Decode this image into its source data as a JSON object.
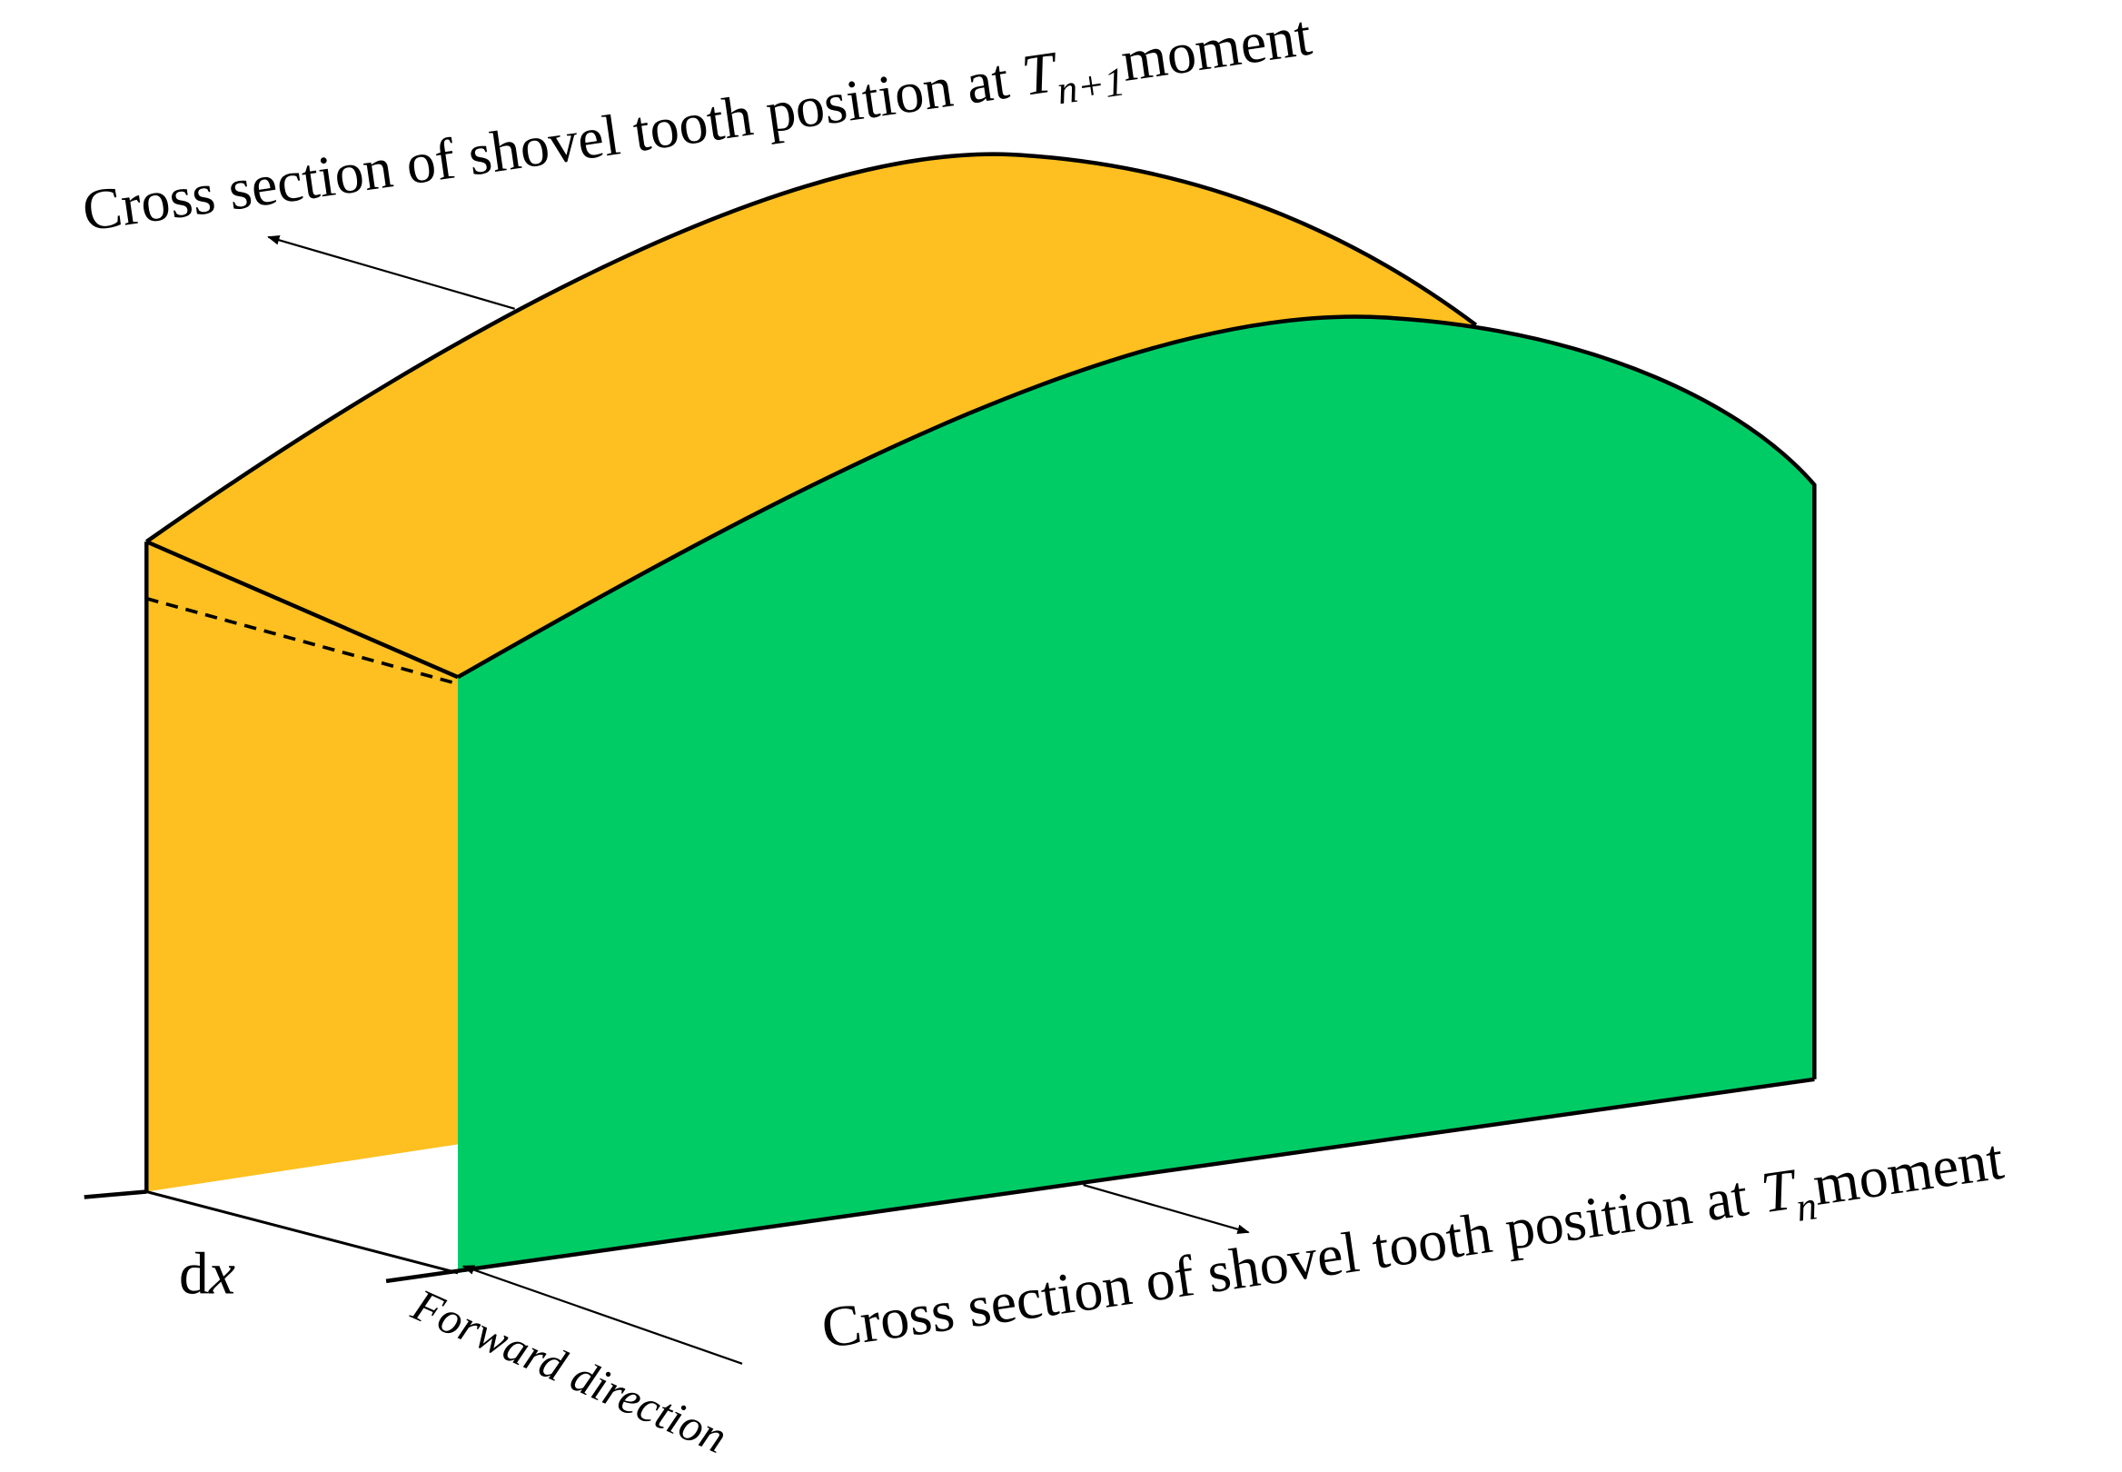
{
  "labels": {
    "top": {
      "prefix": "Cross section of shovel tooth position at ",
      "symbol": "T",
      "subscript": "n+1",
      "suffix": "moment"
    },
    "bottom": {
      "prefix": "Cross section of shovel tooth position at ",
      "symbol": "T",
      "subscript": "n",
      "suffix": "moment"
    },
    "dx": {
      "d": "d",
      "x": "x"
    },
    "forward": "Forward direction"
  }
}
